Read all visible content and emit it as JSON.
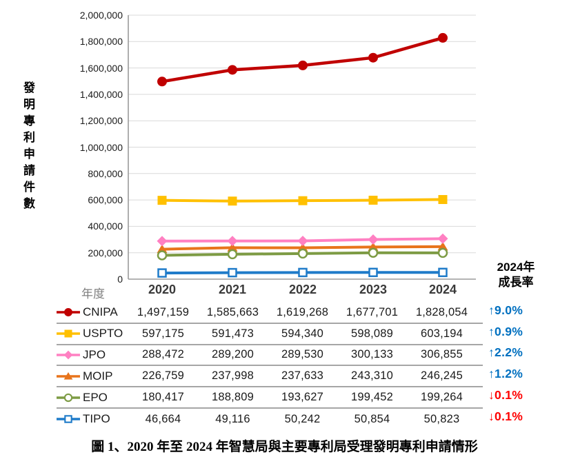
{
  "chart_data": {
    "type": "line",
    "categories": [
      "2020",
      "2021",
      "2022",
      "2023",
      "2024"
    ],
    "x_axis_label": "年度",
    "y_axis_title": "發明專利申請件數",
    "ylim": [
      0,
      2000000
    ],
    "ytick_step": 200000,
    "grid": true,
    "legend_position": "table-below",
    "series": [
      {
        "name": "CNIPA",
        "values": [
          1497159,
          1585663,
          1619268,
          1677701,
          1828054
        ],
        "color": "#C00000",
        "marker": "circle",
        "line_width": 4.5,
        "z": 5,
        "growth": "↑9.0%",
        "growth_dir": "up"
      },
      {
        "name": "USPTO",
        "values": [
          597175,
          591473,
          594340,
          598089,
          603194
        ],
        "color": "#FFC000",
        "marker": "square",
        "line_width": 4,
        "z": 4,
        "growth": "↑0.9%",
        "growth_dir": "up"
      },
      {
        "name": "JPO",
        "values": [
          288472,
          289200,
          289530,
          300133,
          306855
        ],
        "color": "#FF80C2",
        "marker": "diamond",
        "line_width": 4,
        "z": 2,
        "growth": "↑2.2%",
        "growth_dir": "up"
      },
      {
        "name": "MOIP",
        "values": [
          226759,
          237998,
          237633,
          243310,
          246245
        ],
        "color": "#E8741B",
        "marker": "triangle",
        "line_width": 4,
        "z": 0,
        "growth": "↑1.2%",
        "growth_dir": "up"
      },
      {
        "name": "EPO",
        "values": [
          180417,
          188809,
          193627,
          199452,
          199264
        ],
        "color": "#7D9B44",
        "marker": "circle-open",
        "line_width": 4,
        "z": 1,
        "growth": "↓0.1%",
        "growth_dir": "down"
      },
      {
        "name": "TIPO",
        "values": [
          46664,
          49116,
          50242,
          50854,
          50823
        ],
        "color": "#1F7BC9",
        "marker": "square-open",
        "line_width": 4,
        "z": 3,
        "growth": "↓0.1%",
        "growth_dir": "down"
      }
    ],
    "growth_header": [
      "2024年",
      "成長率"
    ]
  },
  "colors": {
    "up": "#0070C0",
    "down": "#FF0000",
    "grid": "#d9d9d9",
    "axis": "#9a9a9a"
  },
  "caption": "圖 1、2020 年至 2024 年智慧局與主要專利局受理發明專利申請情形"
}
